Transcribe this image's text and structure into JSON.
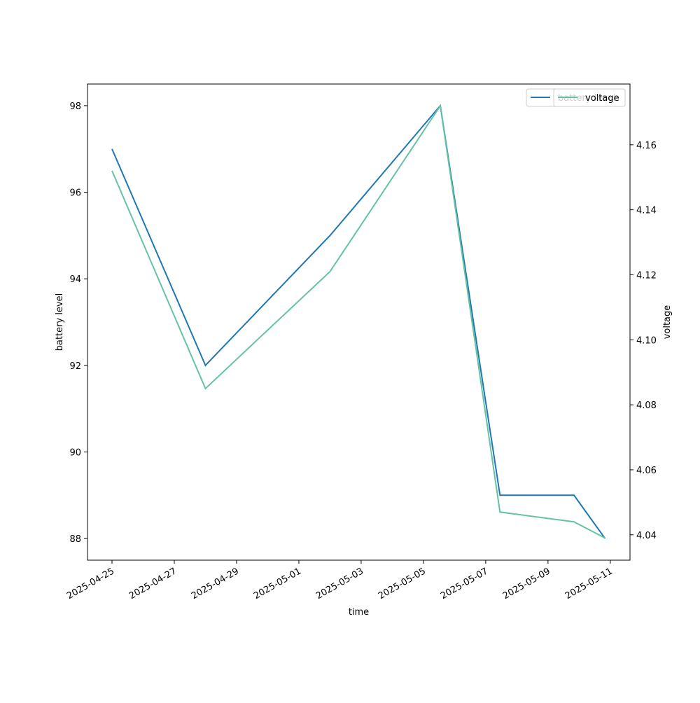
{
  "chart_data": {
    "type": "line",
    "x": [
      "2025-04-25T00:00",
      "2025-04-28T00:00",
      "2025-05-02T00:00",
      "2025-05-05T13:00",
      "2025-05-07T11:00",
      "2025-05-09T20:00",
      "2025-05-10T20:00"
    ],
    "series": [
      {
        "name": "battery level",
        "color": "#1f77b4",
        "values": [
          97,
          92,
          95,
          98,
          89,
          89,
          88
        ]
      },
      {
        "name": "voltage",
        "color": "#66c2a5",
        "axis": "y2",
        "values": [
          4.152,
          4.085,
          4.121,
          4.172,
          4.047,
          4.044,
          4.039
        ]
      }
    ],
    "xlabel": "time",
    "ylabel": "battery level",
    "y2label": "voltage",
    "xlim": [
      "2025-04-24T05:07",
      "2025-05-11T15:11"
    ],
    "xticks": [
      "2025-04-25",
      "2025-04-27",
      "2025-04-29",
      "2025-05-01",
      "2025-05-03",
      "2025-05-05",
      "2025-05-07",
      "2025-05-09",
      "2025-05-11"
    ],
    "ylim": [
      87.5,
      98.5
    ],
    "yticks": [
      88,
      90,
      92,
      94,
      96,
      98
    ],
    "y2lim": [
      4.0322,
      4.1787
    ],
    "y2ticks": [
      4.04,
      4.06,
      4.08,
      {
        "value": 4.1,
        "label": "4.10"
      },
      4.12,
      4.14,
      4.16
    ],
    "legend": "upper right"
  }
}
